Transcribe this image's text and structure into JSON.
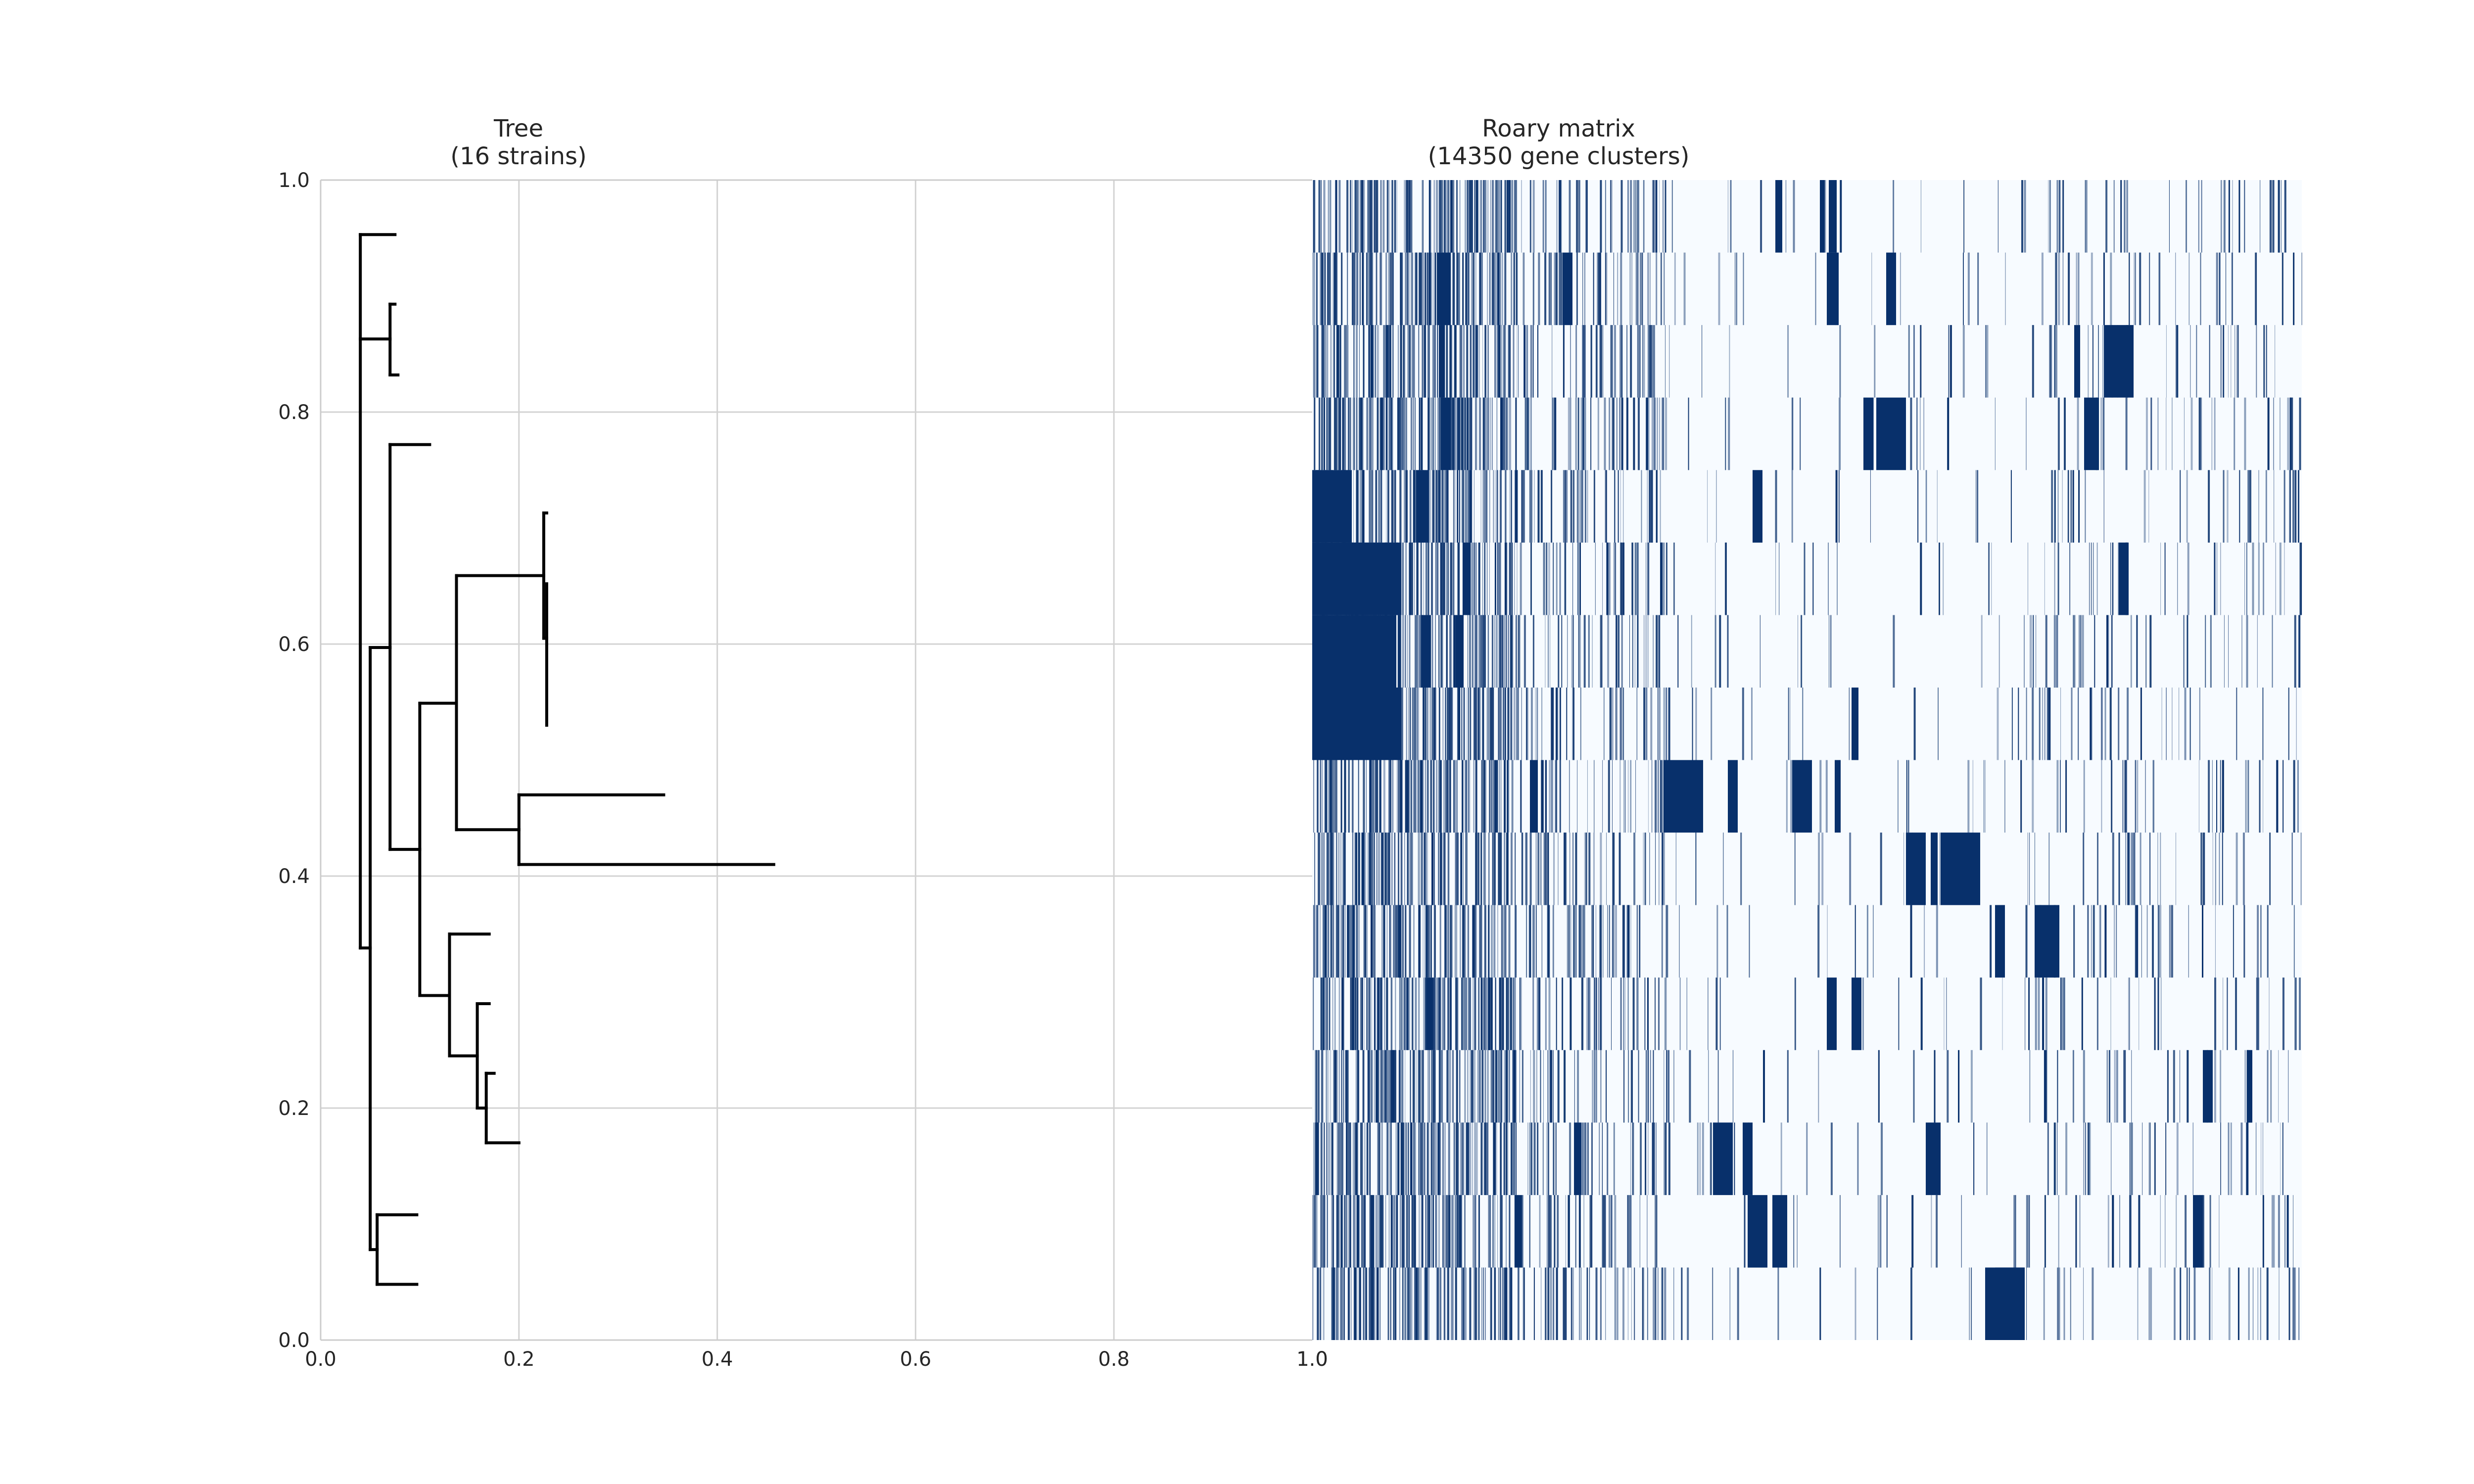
{
  "tree_panel": {
    "title_line1": "Tree",
    "title_line2": "(16 strains)"
  },
  "matrix_panel": {
    "title_line1": "Roary matrix",
    "title_line2": "(14350 gene clusters)"
  },
  "colors": {
    "presence": "#08306b",
    "absence": "#f7fbff",
    "grid": "#d3d3d3",
    "tree": "#000000",
    "axis": "#cccccc"
  },
  "chart_data": [
    {
      "type": "tree",
      "title": "Tree\n(16 strains)",
      "xlim": [
        0.0,
        1.0
      ],
      "ylim": [
        0.0,
        1.0
      ],
      "x_ticks": [
        "0.0",
        "0.2",
        "0.4",
        "0.6",
        "0.8",
        "1.0"
      ],
      "y_ticks": [
        "0.0",
        "0.2",
        "0.4",
        "0.6",
        "0.8",
        "1.0"
      ],
      "grid": true,
      "segments": [
        [
          0.04,
          0.338,
          0.04,
          0.953
        ],
        [
          0.04,
          0.953,
          0.075,
          0.953
        ],
        [
          0.04,
          0.863,
          0.07,
          0.863
        ],
        [
          0.07,
          0.832,
          0.07,
          0.893
        ],
        [
          0.07,
          0.893,
          0.075,
          0.893
        ],
        [
          0.07,
          0.832,
          0.078,
          0.832
        ],
        [
          0.04,
          0.338,
          0.05,
          0.338
        ],
        [
          0.05,
          0.078,
          0.05,
          0.597
        ],
        [
          0.05,
          0.597,
          0.07,
          0.597
        ],
        [
          0.07,
          0.423,
          0.07,
          0.772
        ],
        [
          0.07,
          0.772,
          0.11,
          0.772
        ],
        [
          0.07,
          0.423,
          0.1,
          0.423
        ],
        [
          0.1,
          0.297,
          0.1,
          0.549
        ],
        [
          0.1,
          0.549,
          0.137,
          0.549
        ],
        [
          0.137,
          0.44,
          0.137,
          0.659
        ],
        [
          0.137,
          0.659,
          0.225,
          0.659
        ],
        [
          0.225,
          0.605,
          0.225,
          0.713
        ],
        [
          0.225,
          0.713,
          0.228,
          0.713
        ],
        [
          0.225,
          0.605,
          0.228,
          0.605
        ],
        [
          0.228,
          0.53,
          0.228,
          0.652
        ],
        [
          0.137,
          0.44,
          0.2,
          0.44
        ],
        [
          0.2,
          0.41,
          0.2,
          0.47
        ],
        [
          0.2,
          0.47,
          0.346,
          0.47
        ],
        [
          0.2,
          0.41,
          0.457,
          0.41
        ],
        [
          0.1,
          0.297,
          0.13,
          0.297
        ],
        [
          0.13,
          0.245,
          0.13,
          0.35
        ],
        [
          0.13,
          0.35,
          0.17,
          0.35
        ],
        [
          0.13,
          0.245,
          0.158,
          0.245
        ],
        [
          0.158,
          0.2,
          0.158,
          0.29
        ],
        [
          0.158,
          0.29,
          0.17,
          0.29
        ],
        [
          0.158,
          0.2,
          0.167,
          0.2
        ],
        [
          0.167,
          0.17,
          0.167,
          0.23
        ],
        [
          0.167,
          0.23,
          0.175,
          0.23
        ],
        [
          0.167,
          0.17,
          0.2,
          0.17
        ],
        [
          0.05,
          0.078,
          0.057,
          0.078
        ],
        [
          0.057,
          0.048,
          0.057,
          0.108
        ],
        [
          0.057,
          0.108,
          0.097,
          0.108
        ],
        [
          0.057,
          0.048,
          0.097,
          0.048
        ]
      ]
    },
    {
      "type": "heatmap",
      "title": "Roary matrix\n(14350 gene clusters)",
      "rows": 16,
      "columns": 14350,
      "x_range": [
        0.0,
        1.0
      ],
      "values": "binary presence/absence (1 = dark blue, 0 = pale blue)",
      "x_ticks": [
        "1.0"
      ],
      "blocks": [
        [
          0,
          0.513,
          0.518
        ],
        [
          0,
          0.468,
          0.475
        ],
        [
          0,
          0.522,
          0.53
        ],
        [
          1,
          0.58,
          0.59
        ],
        [
          1,
          0.52,
          0.532
        ],
        [
          1,
          0.126,
          0.14
        ],
        [
          1,
          0.253,
          0.263
        ],
        [
          2,
          0.8,
          0.83
        ],
        [
          2,
          0.77,
          0.776
        ],
        [
          2,
          0.128,
          0.134
        ],
        [
          3,
          0.57,
          0.6
        ],
        [
          3,
          0.557,
          0.567
        ],
        [
          3,
          0.78,
          0.795
        ],
        [
          3,
          0.13,
          0.14
        ],
        [
          4,
          0.0,
          0.04
        ],
        [
          4,
          0.445,
          0.455
        ],
        [
          4,
          0.105,
          0.118
        ],
        [
          5,
          0.0,
          0.09
        ],
        [
          5,
          0.152,
          0.16
        ],
        [
          5,
          0.815,
          0.825
        ],
        [
          6,
          0.0,
          0.085
        ],
        [
          6,
          0.11,
          0.12
        ],
        [
          6,
          0.145,
          0.153
        ],
        [
          7,
          0.0,
          0.09
        ],
        [
          7,
          0.545,
          0.552
        ],
        [
          8,
          0.355,
          0.395
        ],
        [
          8,
          0.485,
          0.505
        ],
        [
          8,
          0.42,
          0.43
        ],
        [
          8,
          0.528,
          0.534
        ],
        [
          8,
          0.22,
          0.228
        ],
        [
          9,
          0.6,
          0.62
        ],
        [
          9,
          0.635,
          0.675
        ],
        [
          9,
          0.625,
          0.632
        ],
        [
          10,
          0.69,
          0.7
        ],
        [
          10,
          0.73,
          0.755
        ],
        [
          11,
          0.52,
          0.53
        ],
        [
          11,
          0.545,
          0.555
        ],
        [
          11,
          0.115,
          0.122
        ],
        [
          12,
          0.9,
          0.91
        ],
        [
          12,
          0.945,
          0.95
        ],
        [
          13,
          0.405,
          0.425
        ],
        [
          13,
          0.435,
          0.445
        ],
        [
          13,
          0.62,
          0.635
        ],
        [
          13,
          0.265,
          0.272
        ],
        [
          14,
          0.44,
          0.46
        ],
        [
          14,
          0.465,
          0.48
        ],
        [
          14,
          0.89,
          0.9
        ],
        [
          14,
          0.205,
          0.212
        ],
        [
          15,
          0.68,
          0.72
        ],
        [
          15,
          0.69,
          0.72
        ]
      ]
    }
  ]
}
